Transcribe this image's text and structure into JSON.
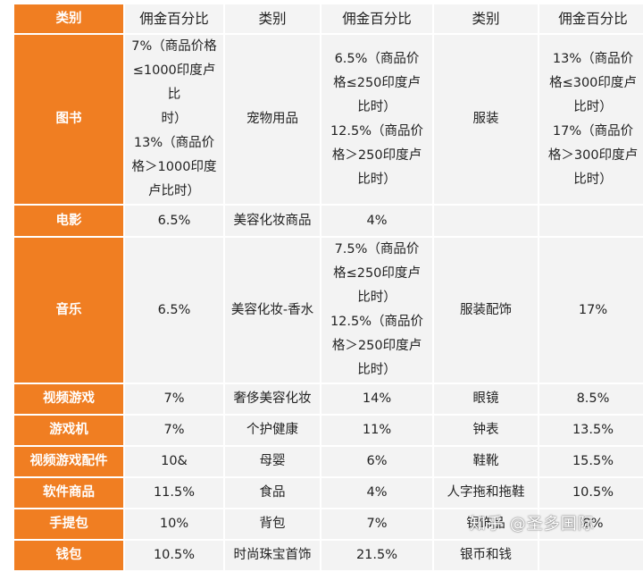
{
  "header": {
    "cat1": "类别",
    "pct1": "佣金百分比",
    "cat2": "类别",
    "pct2": "佣金百分比",
    "cat3": "类别",
    "pct3": "佣金百分比"
  },
  "rows": [
    {
      "c1": "图书",
      "p1": [
        "7%（商品价格",
        "≤1000印度卢比",
        "时）",
        "13%（商品价",
        "格＞1000印度",
        "卢比时）"
      ],
      "c2": "宠物用品",
      "p2": [
        "6.5%（商品价",
        "格≤250印度卢",
        "比时）",
        "12.5%（商品价",
        "格＞250印度卢",
        "比时）"
      ],
      "c3": "服装",
      "p3": [
        "13%（商品价",
        "格≤300印度卢",
        "比时）",
        "17%（商品价",
        "格＞300印度卢",
        "比时）"
      ]
    },
    {
      "c1": "电影",
      "p1": [
        "6.5%"
      ],
      "c2": "美容化妆商品",
      "p2": [
        "4%"
      ],
      "c3": "",
      "p3": [
        ""
      ]
    },
    {
      "c1": "音乐",
      "p1": [
        "6.5%"
      ],
      "c2": "美容化妆-香水",
      "p2": [
        "7.5%（商品价",
        "格≤250印度卢",
        "比时）",
        "12.5%（商品价",
        "格＞250印度卢",
        "比时）"
      ],
      "c3": "服装配饰",
      "p3": [
        "17%"
      ]
    },
    {
      "c1": "视频游戏",
      "p1": [
        "7%"
      ],
      "c2": "奢侈美容化妆",
      "p2": [
        "14%"
      ],
      "c3": "眼镜",
      "p3": [
        "8.5%"
      ]
    },
    {
      "c1": "游戏机",
      "p1": [
        "7%"
      ],
      "c2": "个护健康",
      "p2": [
        "11%"
      ],
      "c3": "钟表",
      "p3": [
        "13.5%"
      ]
    },
    {
      "c1": "视频游戏配件",
      "p1": [
        "10&"
      ],
      "c2": "母婴",
      "p2": [
        "6%"
      ],
      "c3": "鞋靴",
      "p3": [
        "15.5%"
      ]
    },
    {
      "c1": "软件商品",
      "p1": [
        "11.5%"
      ],
      "c2": "食品",
      "p2": [
        "4%"
      ],
      "c3": "人字拖和拖鞋",
      "p3": [
        "10.5%"
      ]
    },
    {
      "c1": "手提包",
      "p1": [
        "10%"
      ],
      "c2": "背包",
      "p2": [
        "7%"
      ],
      "c3": "银饰品",
      "p3": [
        "8%"
      ]
    },
    {
      "c1": "钱包",
      "p1": [
        "10.5%"
      ],
      "c2": "时尚珠宝首饰",
      "p2": [
        "21.5%"
      ],
      "c3": "银币和钱",
      "p3": [
        ""
      ]
    }
  ],
  "watermark": "知乎 @圣多国际"
}
